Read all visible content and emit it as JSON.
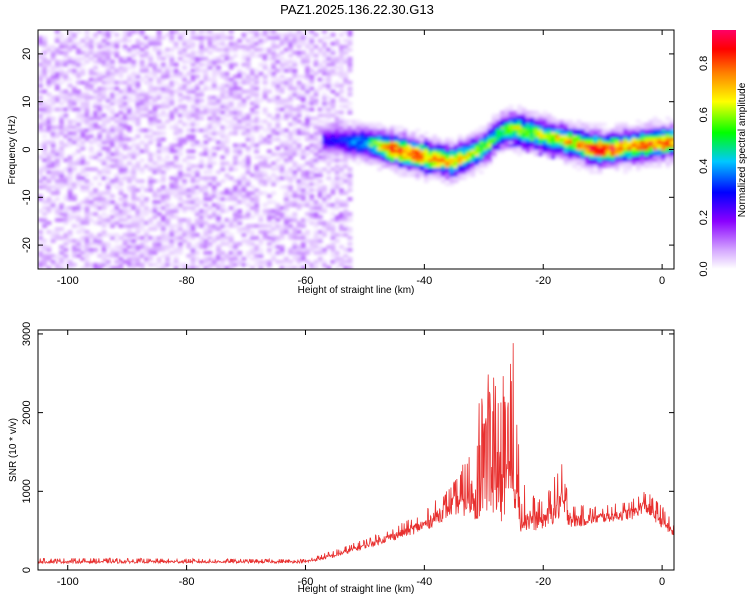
{
  "page": {
    "title": "PAZ1.2025.136.22.30.G13"
  },
  "chart_data": [
    {
      "type": "heatmap",
      "title": "PAZ1.2025.136.22.30.G13",
      "xlabel": "Height of straight line (km)",
      "ylabel": "Frequency (Hz)",
      "xlim": [
        -105,
        2
      ],
      "ylim": [
        -25,
        25
      ],
      "x_ticks": [
        -100,
        -80,
        -60,
        -40,
        -20,
        0
      ],
      "y_ticks": [
        -20,
        -10,
        0,
        10,
        20
      ],
      "colorbar": {
        "label": "Normalized spectral amplitude",
        "range": [
          0,
          0.93
        ],
        "ticks": [
          0.0,
          0.2,
          0.4,
          0.6,
          0.8
        ],
        "colormap": [
          "#ffffff",
          "#d4a6ff",
          "#8a00ff",
          "#0000ff",
          "#00c8ff",
          "#00ff00",
          "#ffff00",
          "#ff8000",
          "#ff0000",
          "#ff0066"
        ]
      },
      "noise_region": {
        "x_range": [
          -105,
          -52
        ],
        "amplitude": [
          0.03,
          0.15
        ]
      },
      "signal_ridge": [
        {
          "x": -55,
          "y": 2,
          "a": 0.3
        },
        {
          "x": -50,
          "y": 1.5,
          "a": 0.45
        },
        {
          "x": -45,
          "y": 0.0,
          "a": 0.88
        },
        {
          "x": -40,
          "y": -1.5,
          "a": 0.82
        },
        {
          "x": -35,
          "y": -2.5,
          "a": 0.72
        },
        {
          "x": -30,
          "y": 0.5,
          "a": 0.62
        },
        {
          "x": -27,
          "y": 4.0,
          "a": 0.55
        },
        {
          "x": -25,
          "y": 4.5,
          "a": 0.62
        },
        {
          "x": -20,
          "y": 3.0,
          "a": 0.65
        },
        {
          "x": -15,
          "y": 1.5,
          "a": 0.72
        },
        {
          "x": -12,
          "y": 0.5,
          "a": 0.88
        },
        {
          "x": -10,
          "y": 0.0,
          "a": 0.9
        },
        {
          "x": -5,
          "y": 0.8,
          "a": 0.75
        },
        {
          "x": 0,
          "y": 1.5,
          "a": 0.88
        },
        {
          "x": 2,
          "y": 1.8,
          "a": 0.7
        }
      ]
    },
    {
      "type": "line",
      "xlabel": "Height of straight line (km)",
      "ylabel": "SNR (10 * v/v)",
      "xlim": [
        -105,
        2
      ],
      "ylim": [
        0,
        3050
      ],
      "x_ticks": [
        -100,
        -80,
        -60,
        -40,
        -20,
        0
      ],
      "y_ticks": [
        0,
        1000,
        2000,
        3000
      ],
      "color": "#e8302f",
      "envelope": [
        {
          "x": -105,
          "base": 100,
          "amp": 80
        },
        {
          "x": -60,
          "base": 100,
          "amp": 60
        },
        {
          "x": -55,
          "base": 180,
          "amp": 120
        },
        {
          "x": -50,
          "base": 300,
          "amp": 150
        },
        {
          "x": -45,
          "base": 420,
          "amp": 200
        },
        {
          "x": -40,
          "base": 550,
          "amp": 300
        },
        {
          "x": -35,
          "base": 800,
          "amp": 500
        },
        {
          "x": -30,
          "base": 900,
          "amp": 1500
        },
        {
          "x": -28,
          "base": 1000,
          "amp": 1900
        },
        {
          "x": -25,
          "base": 900,
          "amp": 2000
        },
        {
          "x": -23,
          "base": 600,
          "amp": 700
        },
        {
          "x": -20,
          "base": 600,
          "amp": 400
        },
        {
          "x": -17,
          "base": 800,
          "amp": 900
        },
        {
          "x": -15,
          "base": 600,
          "amp": 350
        },
        {
          "x": -10,
          "base": 650,
          "amp": 250
        },
        {
          "x": -5,
          "base": 700,
          "amp": 300
        },
        {
          "x": -3,
          "base": 800,
          "amp": 350
        },
        {
          "x": 0,
          "base": 600,
          "amp": 350
        },
        {
          "x": 2,
          "base": 450,
          "amp": 200
        }
      ]
    }
  ]
}
